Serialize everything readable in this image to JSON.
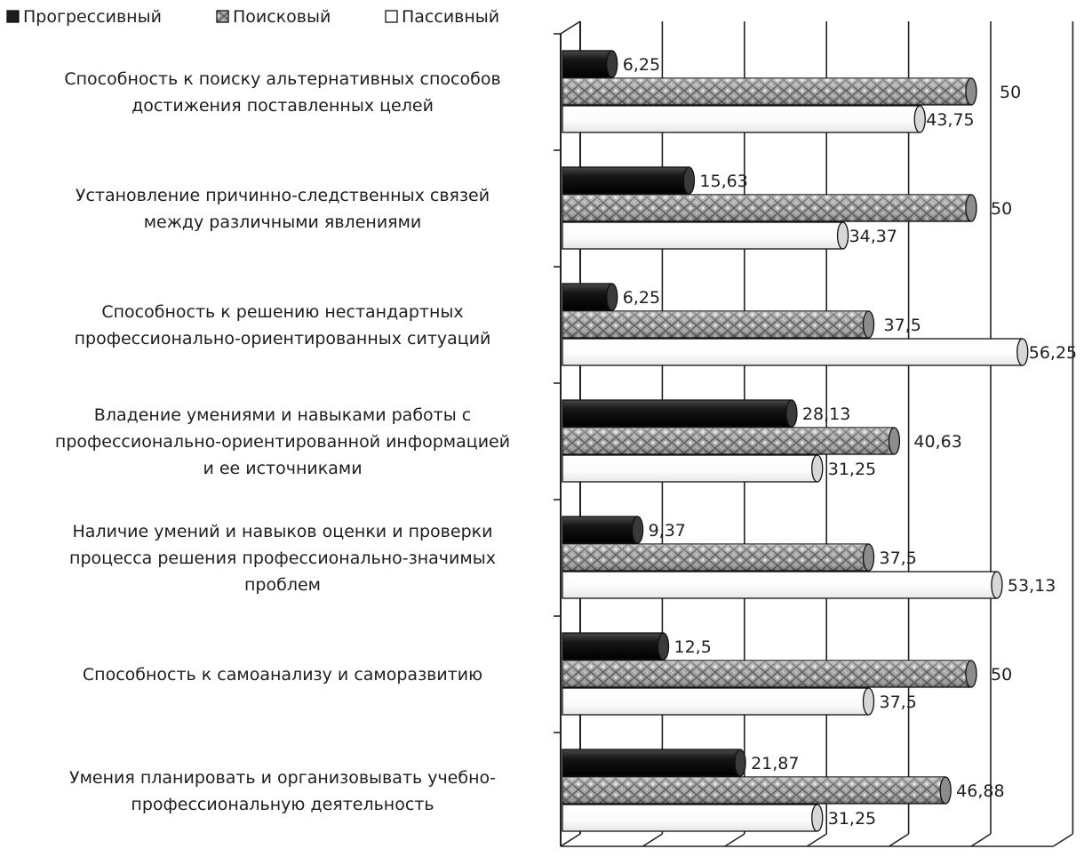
{
  "chart_data": {
    "type": "bar",
    "orientation": "horizontal",
    "style": "3d-cylinder",
    "title": "",
    "xlabel": "",
    "ylabel": "",
    "xlim": [
      0,
      60
    ],
    "grid": true,
    "legend_position": "top-left",
    "categories": [
      [
        "Способность к поиску альтернативных способов",
        "достижения поставленных целей"
      ],
      [
        "Установление причинно-следственных связей",
        "между различными явлениями"
      ],
      [
        "Способность к решению  нестандартных",
        "профессионально-ориентированных ситуаций"
      ],
      [
        "Владение умениями и навыками работы с",
        "профессионально-ориентированной информацией",
        "и ее источниками"
      ],
      [
        "Наличие умений и навыков оценки и проверки",
        "процесса решения  профессионально-значимых",
        "проблем"
      ],
      [
        "Способность к самоанализу и саморазвитию"
      ],
      [
        "Умения  планировать и организовывать учебно-",
        "профессиональную деятельность"
      ]
    ],
    "series": [
      {
        "name": "Прогрессивный",
        "color": "#1c1c1c",
        "pattern": "solid",
        "values": [
          6.25,
          15.63,
          6.25,
          28.13,
          9.37,
          12.5,
          21.87
        ],
        "labels": [
          "6,25",
          "15,63",
          "6,25",
          "28,13",
          "9,37",
          "12,5",
          "21,87"
        ]
      },
      {
        "name": "Поисковый",
        "color": "#9a9a9a",
        "pattern": "textured",
        "values": [
          50,
          50,
          37.5,
          40.63,
          37.5,
          50,
          46.88
        ],
        "labels": [
          "50",
          "50",
          "37,5",
          "40,63",
          "37,5",
          "50",
          "46,88"
        ]
      },
      {
        "name": "Пассивный",
        "color": "#ffffff",
        "pattern": "outline",
        "values": [
          43.75,
          34.37,
          56.25,
          31.25,
          53.13,
          37.5,
          31.25
        ],
        "labels": [
          "43,75",
          "34,37",
          "56,25",
          "31,25",
          "53,13",
          "37,5",
          "31,25"
        ]
      }
    ]
  }
}
